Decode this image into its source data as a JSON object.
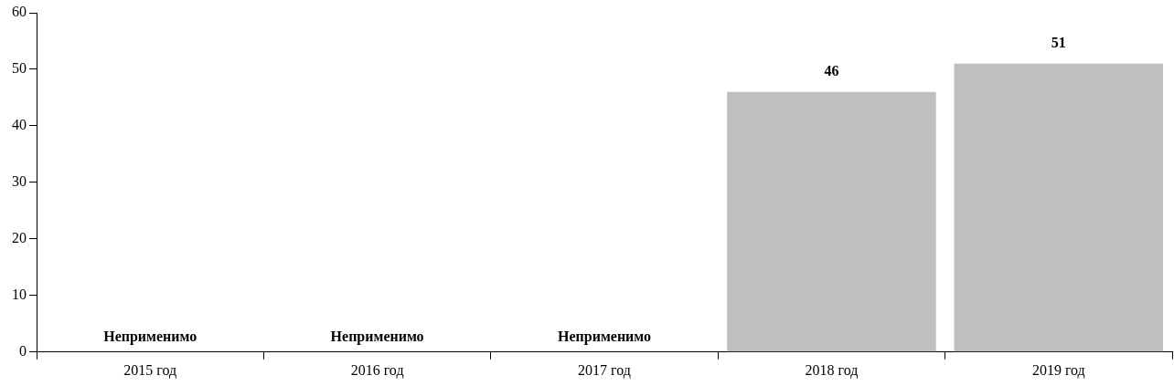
{
  "chart_data": {
    "type": "bar",
    "categories": [
      "2015 год",
      "2016 год",
      "2017 год",
      "2018 год",
      "2019 год"
    ],
    "values": [
      null,
      null,
      null,
      46,
      51
    ],
    "value_labels": [
      "Неприменимо",
      "Неприменимо",
      "Неприменимо",
      "46",
      "51"
    ],
    "color": "#bfbfbf",
    "ylim": [
      0,
      60
    ],
    "yticks": [
      0,
      10,
      20,
      30,
      40,
      50,
      60
    ],
    "grid": false,
    "legend": false
  }
}
